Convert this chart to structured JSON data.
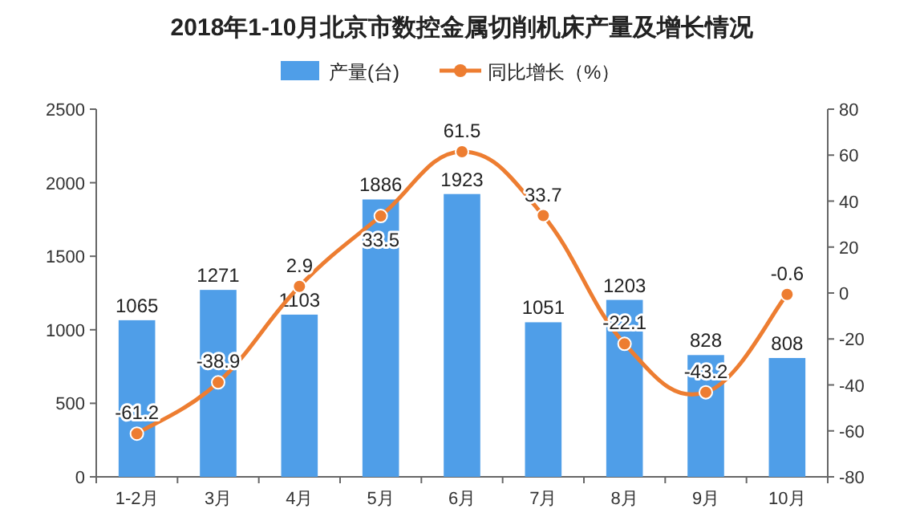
{
  "chart_data": {
    "type": "bar",
    "title": "2018年1-10月北京市数控金属切削机床产量及增长情况",
    "categories": [
      "1-2月",
      "3月",
      "4月",
      "5月",
      "6月",
      "7月",
      "8月",
      "9月",
      "10月"
    ],
    "series": [
      {
        "name": "产量(台)",
        "color": "#4f9ee8",
        "values": [
          1065,
          1271,
          1103,
          1886,
          1923,
          1051,
          1203,
          828,
          808
        ]
      },
      {
        "name": "同比增长（%）",
        "type": "line",
        "axis": "y2",
        "color": "#ed7d31",
        "values": [
          -61.2,
          -38.9,
          2.9,
          33.5,
          61.5,
          33.7,
          -22.1,
          -43.2,
          -0.6
        ]
      }
    ],
    "ylim": [
      0,
      2500
    ],
    "yticks": [
      0,
      500,
      1000,
      1500,
      2000,
      2500
    ],
    "y2lim": [
      -80,
      80
    ],
    "y2ticks": [
      -80,
      -60,
      -40,
      -20,
      0,
      20,
      40,
      60,
      80
    ],
    "marker": "circle",
    "line_style": "solid",
    "grid": false,
    "legend": "top",
    "data_labels": true
  }
}
